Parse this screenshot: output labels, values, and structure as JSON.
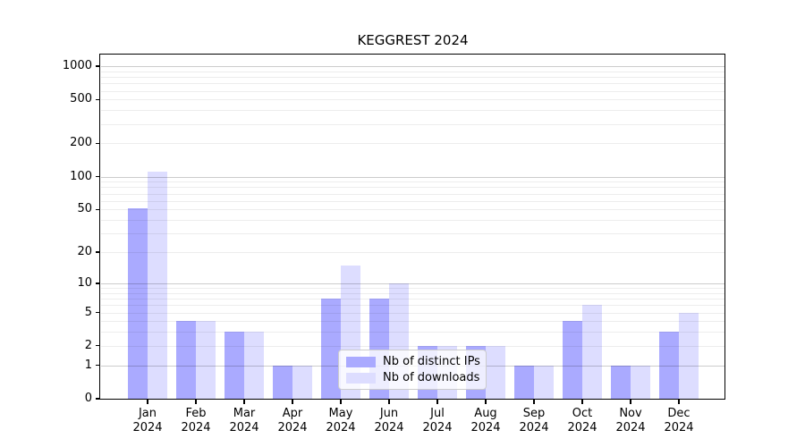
{
  "title": "KEGGREST 2024",
  "chart_data": {
    "type": "bar",
    "title": "KEGGREST 2024",
    "categories": [
      "Jan",
      "Feb",
      "Mar",
      "Apr",
      "May",
      "Jun",
      "Jul",
      "Aug",
      "Sep",
      "Oct",
      "Nov",
      "Dec"
    ],
    "x_year_label": "2024",
    "series": [
      {
        "key": "distinct-ips",
        "name": "Nb of distinct IPs",
        "color": "#aaaaff",
        "values": [
          51,
          4,
          3,
          1,
          7,
          7,
          2,
          2,
          1,
          4,
          1,
          3
        ]
      },
      {
        "key": "downloads",
        "name": "Nb of downloads",
        "color": "#ddddff",
        "values": [
          110,
          4,
          3,
          1,
          15,
          10,
          2,
          2,
          1,
          6,
          1,
          5
        ]
      }
    ],
    "y_ticks": [
      0,
      1,
      2,
      5,
      10,
      20,
      50,
      100,
      200,
      500,
      1000
    ],
    "y_scale": "log10(v+1)",
    "ylim": [
      0,
      1000
    ],
    "grid": "horizontal",
    "gridline_minor_values": [
      2,
      3,
      4,
      5,
      6,
      7,
      8,
      9,
      20,
      30,
      40,
      50,
      60,
      70,
      80,
      90,
      200,
      300,
      400,
      500,
      600,
      700,
      800,
      900
    ],
    "gridline_major_values": [
      1,
      10,
      100,
      1000
    ],
    "legend_position": "bottom-center"
  }
}
